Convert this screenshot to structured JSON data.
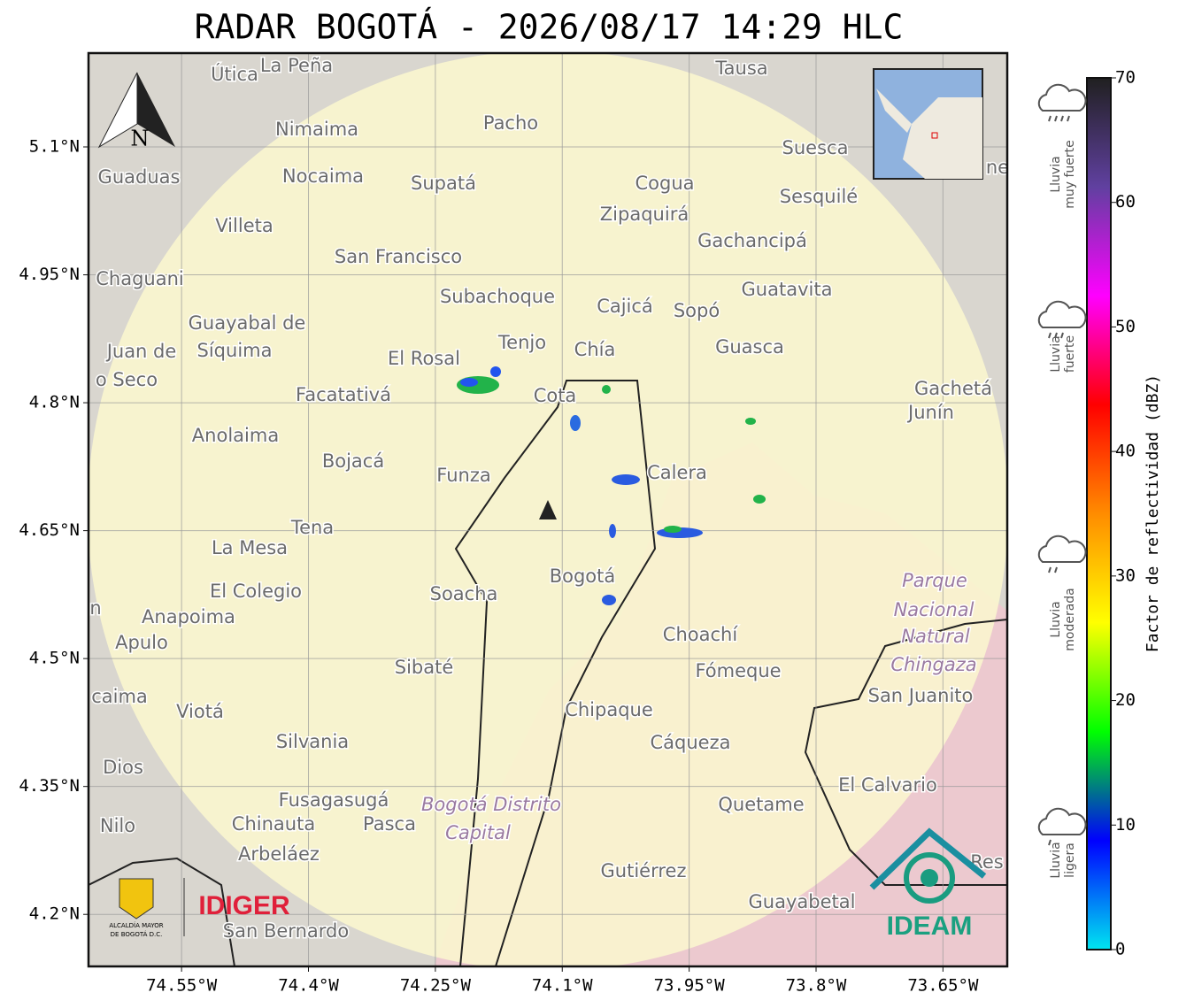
{
  "title": "RADAR BOGOTÁ - 2026/08/17 14:29 HLC",
  "map": {
    "xlim": [
      -74.66,
      -73.574
    ],
    "ylim": [
      4.139,
      5.21
    ],
    "xticks": [
      {
        "value": -74.55,
        "label": "74.55°W"
      },
      {
        "value": -74.4,
        "label": "74.4°W"
      },
      {
        "value": -74.25,
        "label": "74.25°W"
      },
      {
        "value": -74.1,
        "label": "74.1°W"
      },
      {
        "value": -73.95,
        "label": "73.95°W"
      },
      {
        "value": -73.8,
        "label": "73.8°W"
      },
      {
        "value": -73.65,
        "label": "73.65°W"
      }
    ],
    "yticks": [
      {
        "value": 5.1,
        "label": "5.1°N"
      },
      {
        "value": 4.95,
        "label": "4.95°N"
      },
      {
        "value": 4.8,
        "label": "4.8°N"
      },
      {
        "value": 4.65,
        "label": "4.65°N"
      },
      {
        "value": 4.5,
        "label": "4.5°N"
      },
      {
        "value": 4.35,
        "label": "4.35°N"
      },
      {
        "value": 4.2,
        "label": "4.2°N"
      }
    ],
    "north": "N",
    "places": [
      "Útica",
      "La Peña",
      "Tausa",
      "Pacho",
      "Nimaima",
      "Guaduas",
      "Nocaima",
      "Supatá",
      "Cogua",
      "Suesca",
      "Zipaquirá",
      "Sesquilé",
      "Villeta",
      "Gachancipá",
      "San Francisco",
      "Chaguani",
      "Guatavita",
      "Subachoque",
      "Cajicá",
      "Sopó",
      "Guayabal de",
      "Síquima",
      "Tenjo",
      "Chía",
      "Guasca",
      "Juan de",
      "El Rosal",
      "o Seco",
      "Facatativá",
      "Gachetá",
      "Cota",
      "Junín",
      "Anolaima",
      "Bojacá",
      "Funza",
      "Calera",
      "Tena",
      "La Mesa",
      "Bogotá",
      "Parque",
      "El Colegio",
      "Soacha",
      "Nacional",
      "Anapoima",
      "Apulo",
      "Choachí",
      "Natural",
      "Chingaza",
      "Sibaté",
      "Fómeque",
      "San Juanito",
      "caima",
      "Viotá",
      "Chipaque",
      "Silvania",
      "Cáqueza",
      "Dios",
      "El Calvario",
      "Fusagasugá",
      "Bogotá Distrito",
      "Quetame",
      "Nilo",
      "Chinauta",
      "Pasca",
      "Capital",
      "Arbeláez",
      "Gutiérrez",
      "Guayabetal",
      "San Bernardo",
      "Res",
      "ne",
      "n"
    ]
  },
  "colorbar": {
    "label": "Factor de reflectividad (dBZ)",
    "lim": [
      0,
      70
    ],
    "ticks": [
      0,
      10,
      20,
      30,
      40,
      50,
      60,
      70
    ],
    "colors": [
      "#00e5f0",
      "#0000ff",
      "#00ff00",
      "#ffff00",
      "#ff8c00",
      "#ff0000",
      "#ff00ff",
      "#6040a0",
      "#202020"
    ]
  },
  "levels": [
    [
      "Lluvia",
      "muy fuerte"
    ],
    [
      "Lluvia",
      "fuerte"
    ],
    [
      "Lluvia",
      "moderada"
    ],
    [
      "Lluvia",
      "ligera"
    ]
  ],
  "logos": {
    "idiger": "IDIGER",
    "alcaldia": [
      "ALCALDÍA MAYOR",
      "DE BOGOTÁ D.C."
    ],
    "ideam": "IDEAM"
  }
}
